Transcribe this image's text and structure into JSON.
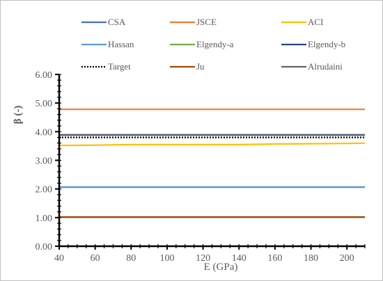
{
  "chart_data": {
    "type": "line",
    "title": "",
    "xlabel": "E (GPa)",
    "ylabel": "β (-)",
    "xlim": [
      40,
      210
    ],
    "ylim": [
      0,
      6
    ],
    "grid": false,
    "legend_position": "top",
    "x_ticks": [
      40,
      60,
      80,
      100,
      120,
      140,
      160,
      180,
      200
    ],
    "y_ticks": [
      "0.00",
      "1.00",
      "2.00",
      "3.00",
      "4.00",
      "5.00",
      "6.00"
    ],
    "x": [
      40,
      60,
      80,
      100,
      120,
      140,
      160,
      180,
      200,
      210
    ],
    "series": [
      {
        "name": "CSA",
        "color": "#4472C4",
        "dash": "",
        "values": [
          2.06,
          2.06,
          2.06,
          2.06,
          2.06,
          2.06,
          2.06,
          2.06,
          2.06,
          2.06
        ]
      },
      {
        "name": "JSCE",
        "color": "#ED7D31",
        "dash": "",
        "values": [
          4.78,
          4.78,
          4.78,
          4.78,
          4.78,
          4.78,
          4.78,
          4.78,
          4.78,
          4.78
        ]
      },
      {
        "name": "ACI",
        "color": "#FFC000",
        "dash": "",
        "values": [
          3.52,
          3.53,
          3.55,
          3.55,
          3.55,
          3.55,
          3.57,
          3.58,
          3.59,
          3.6
        ]
      },
      {
        "name": "Hassan",
        "color": "#5B9BD5",
        "dash": "",
        "values": [
          2.07,
          2.07,
          2.07,
          2.07,
          2.07,
          2.07,
          2.07,
          2.07,
          2.07,
          2.07
        ]
      },
      {
        "name": "Elgendy-a",
        "color": "#70AD47",
        "dash": "",
        "values": [
          1.01,
          1.01,
          1.01,
          1.01,
          1.01,
          1.01,
          1.01,
          1.01,
          1.01,
          1.01
        ]
      },
      {
        "name": "Elgendy-b",
        "color": "#264478",
        "dash": "",
        "values": [
          3.89,
          3.89,
          3.89,
          3.89,
          3.89,
          3.89,
          3.89,
          3.89,
          3.89,
          3.89
        ]
      },
      {
        "name": "Target",
        "color": "#000000",
        "dash": "2,2",
        "values": [
          3.8,
          3.8,
          3.8,
          3.8,
          3.8,
          3.8,
          3.8,
          3.8,
          3.8,
          3.8
        ]
      },
      {
        "name": "Ju",
        "color": "#9E480E",
        "dash": "",
        "values": [
          1.02,
          1.02,
          1.02,
          1.02,
          1.02,
          1.02,
          1.02,
          1.02,
          1.02,
          1.02
        ]
      },
      {
        "name": "Alrudaini",
        "color": "#636363",
        "dash": "",
        "values": [
          3.88,
          3.88,
          3.88,
          3.88,
          3.88,
          3.88,
          3.88,
          3.88,
          3.88,
          3.88
        ]
      }
    ]
  }
}
